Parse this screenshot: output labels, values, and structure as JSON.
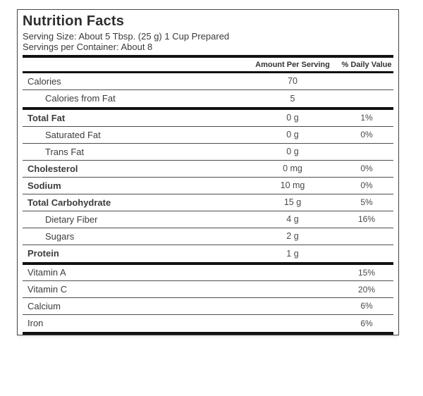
{
  "nutrition_label": {
    "title": "Nutrition Facts",
    "serving_size": "Serving Size: About 5 Tbsp. (25 g) 1 Cup Prepared",
    "servings_per_container": "Servings per Container: About 8",
    "column_headers": {
      "amount": "Amount Per Serving",
      "daily_value": "% Daily Value"
    },
    "rows": [
      {
        "name": "Calories",
        "amount": "70",
        "dv": ""
      },
      {
        "name": "Calories from Fat",
        "amount": "5",
        "dv": ""
      },
      {
        "name": "Total Fat",
        "amount": "0 g",
        "dv": "1%"
      },
      {
        "name": "Saturated Fat",
        "amount": "0 g",
        "dv": "0%"
      },
      {
        "name": "Trans Fat",
        "amount": "0 g",
        "dv": ""
      },
      {
        "name": "Cholesterol",
        "amount": "0 mg",
        "dv": "0%"
      },
      {
        "name": "Sodium",
        "amount": "10 mg",
        "dv": "0%"
      },
      {
        "name": "Total Carbohydrate",
        "amount": "15 g",
        "dv": "5%"
      },
      {
        "name": "Dietary Fiber",
        "amount": "4 g",
        "dv": "16%"
      },
      {
        "name": "Sugars",
        "amount": "2 g",
        "dv": ""
      },
      {
        "name": "Protein",
        "amount": "1 g",
        "dv": ""
      }
    ],
    "vitamins": [
      {
        "name": "Vitamin A",
        "amount": "",
        "dv": "15%"
      },
      {
        "name": "Vitamin C",
        "amount": "",
        "dv": "20%"
      },
      {
        "name": "Calcium",
        "amount": "",
        "dv": "6%"
      },
      {
        "name": "Iron",
        "amount": "",
        "dv": "6%"
      }
    ],
    "colors": {
      "divider_thin": "#4d4d4d",
      "divider_thick": "#111111",
      "border": "#474747",
      "text": "#3c3c3c"
    }
  }
}
